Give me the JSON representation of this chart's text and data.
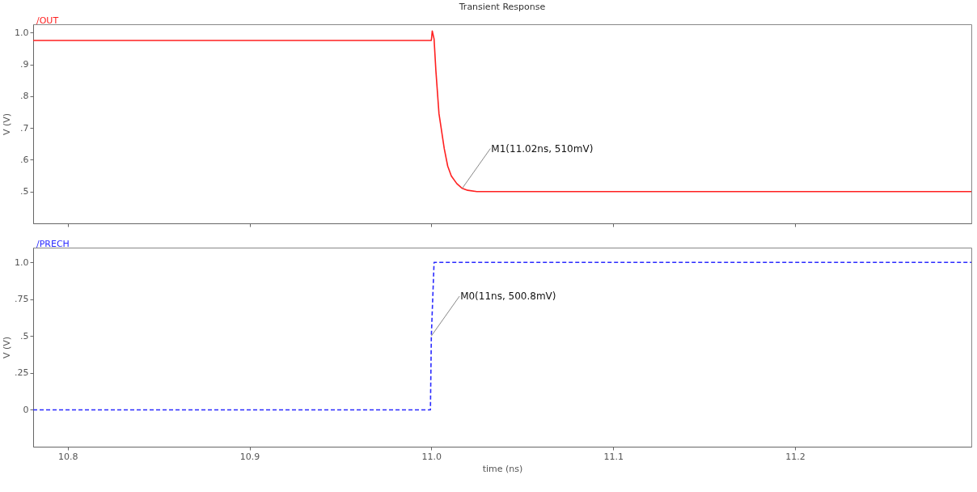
{
  "chart_data": [
    {
      "type": "line",
      "title": "Transient Response",
      "ylabel": "V (V)",
      "xlim": [
        10.781,
        11.297
      ],
      "ylim": [
        0.4,
        1.026
      ],
      "xticks": [
        10.8,
        10.9,
        11,
        11.1,
        11.2
      ],
      "yticks": [
        {
          "value": 0.5,
          "label": ".5"
        },
        {
          "value": 0.6,
          "label": ".6"
        },
        {
          "value": 0.7,
          "label": ".7"
        },
        {
          "value": 0.8,
          "label": ".8"
        },
        {
          "value": 0.9,
          "label": ".9"
        },
        {
          "value": 1,
          "label": "1.0"
        }
      ],
      "tick_labels": "y",
      "grid": false,
      "legend": "top left",
      "marker": "none",
      "series": [
        {
          "name": "/OUT",
          "color": "#ff2020",
          "line_style": "solid",
          "x": [
            10.781,
            11.0,
            11.0005,
            11.0015,
            11.0025,
            11.0042,
            11.0071,
            11.009,
            11.011,
            11.014,
            11.017,
            11.02,
            11.025,
            11.297
          ],
          "values": [
            0.975,
            0.975,
            1.005,
            0.98,
            0.88,
            0.745,
            0.635,
            0.58,
            0.549,
            0.525,
            0.51,
            0.504,
            0.5,
            0.5
          ]
        }
      ],
      "annotations": [
        {
          "text": "M1(11.02ns, 510mV)",
          "x": 11.017,
          "y": 0.51
        }
      ]
    },
    {
      "type": "line",
      "xlabel": "time (ns)",
      "ylabel": "V (V)",
      "xlim": [
        10.781,
        11.297
      ],
      "ylim": [
        -0.25,
        1.1
      ],
      "xticks": [
        10.8,
        10.9,
        {
          "value": 11,
          "label": "11.0"
        },
        11.1,
        11.2
      ],
      "yticks": [
        0,
        {
          "value": 0.25,
          "label": ".25"
        },
        {
          "value": 0.5,
          "label": ".5"
        },
        {
          "value": 0.75,
          "label": ".75"
        },
        {
          "value": 1,
          "label": "1.0"
        }
      ],
      "grid": false,
      "legend": "top left",
      "marker": "none",
      "series": [
        {
          "name": "/PRECH",
          "color": "#2a2aff",
          "line_style": "dashed",
          "x": [
            10.781,
            10.9995,
            11.0,
            11.0015,
            11.297
          ],
          "values": [
            0,
            0,
            0.5,
            1,
            1
          ]
        }
      ],
      "annotations": [
        {
          "text": "M0(11ns, 500.8mV)",
          "x": 11.0,
          "y": 0.5008
        }
      ]
    }
  ]
}
